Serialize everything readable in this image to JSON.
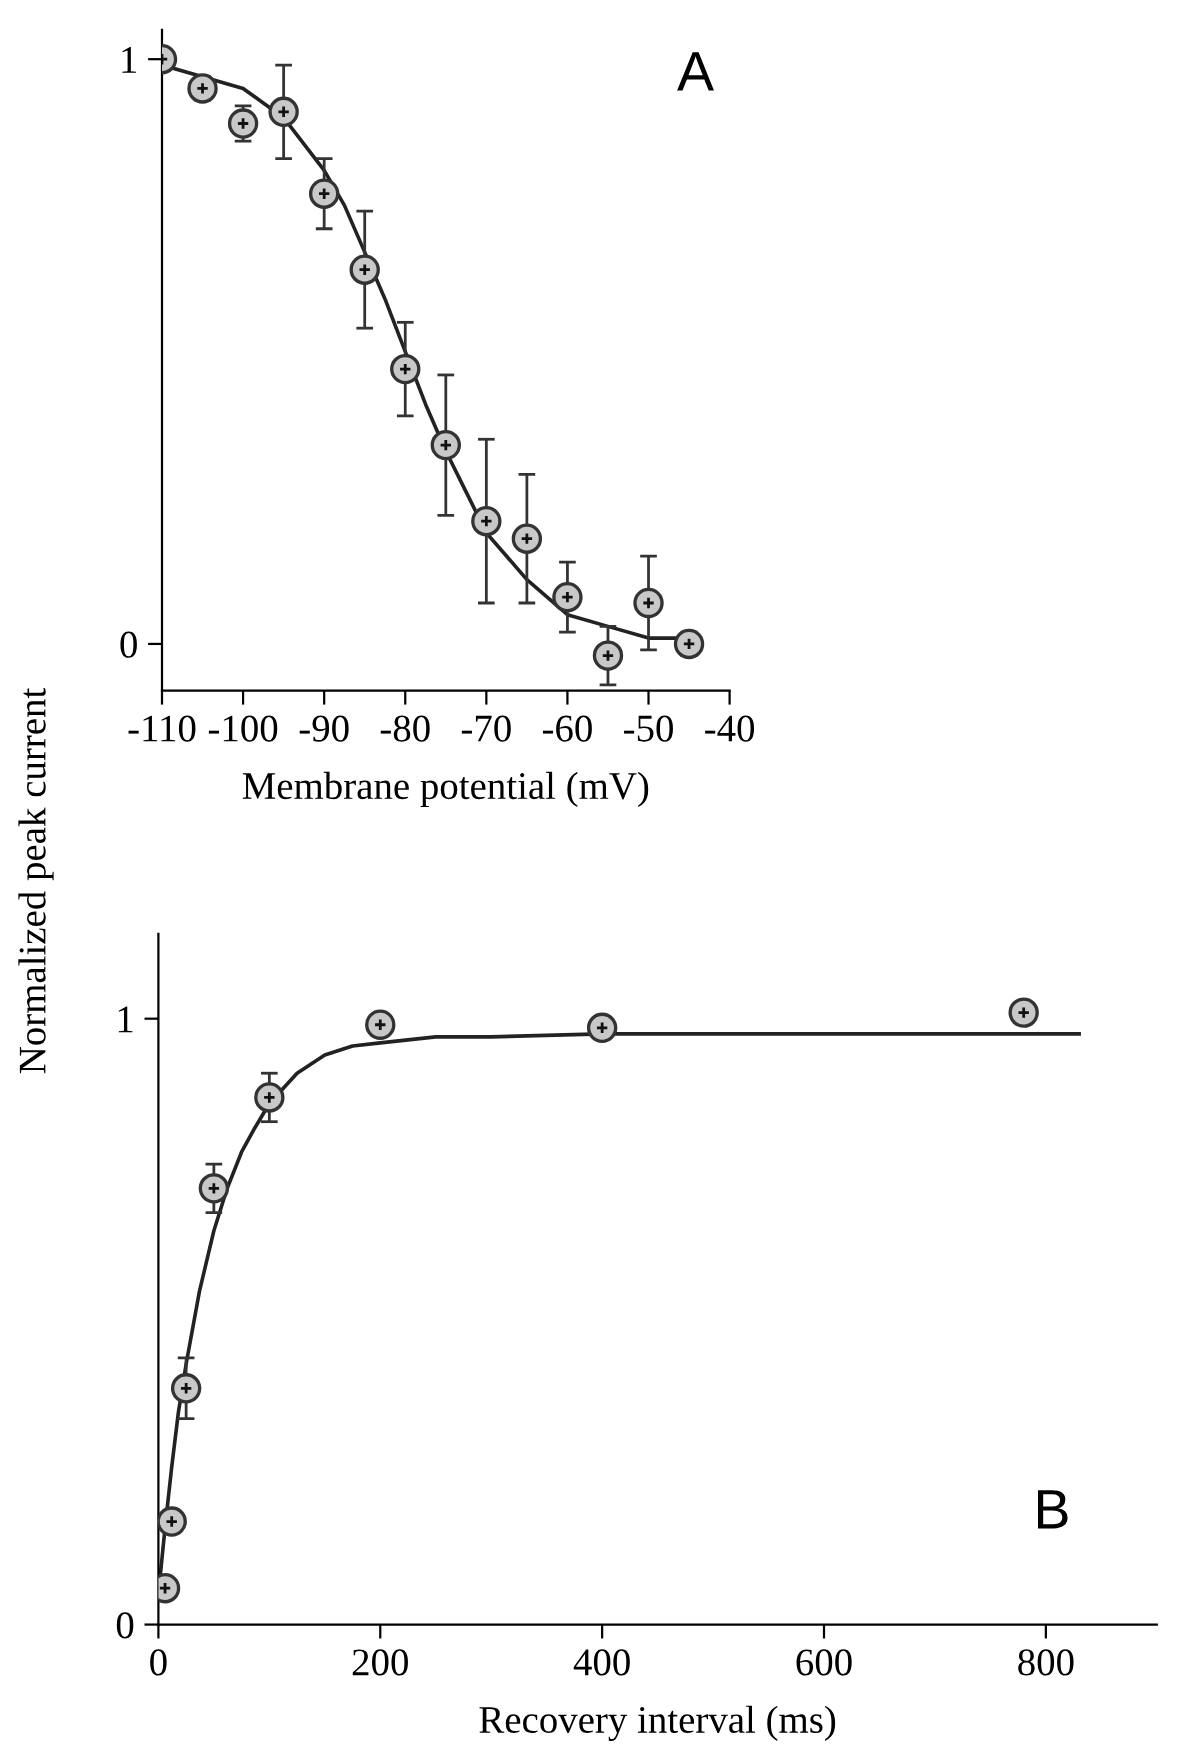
{
  "chart_data": [
    {
      "type": "scatter",
      "ylabel": "Normalized peak current",
      "xlabel": "Membrane potential (mV)",
      "annotations": [
        "A"
      ],
      "xlim": [
        -110,
        -40
      ],
      "ylim": [
        -0.08,
        1.05
      ],
      "xticks": [
        -110,
        -100,
        -90,
        -80,
        -70,
        -60,
        -50,
        -40
      ],
      "yticks": [
        0,
        1
      ],
      "grid": false,
      "legend": false,
      "marker": "circle",
      "series": [
        {
          "type": "line",
          "color": "#222222",
          "marker": "none",
          "line_style": "solid",
          "x": [
            -110,
            -105,
            -100,
            -95,
            -90,
            -87.5,
            -85,
            -82.5,
            -80,
            -77.5,
            -75,
            -72.5,
            -70,
            -65,
            -60,
            -55,
            -50,
            -45
          ],
          "values": [
            0.99,
            0.97,
            0.95,
            0.9,
            0.81,
            0.75,
            0.67,
            0.59,
            0.5,
            0.41,
            0.33,
            0.26,
            0.19,
            0.11,
            0.05,
            0.03,
            0.01,
            0.01
          ]
        },
        {
          "color": "#c8c8c8",
          "x": [
            -110,
            -105,
            -100,
            -95,
            -90,
            -85,
            -80,
            -75,
            -70,
            -65,
            -60,
            -55,
            -50,
            -45
          ],
          "values": [
            1.0,
            0.95,
            0.89,
            0.91,
            0.77,
            0.64,
            0.47,
            0.34,
            0.21,
            0.18,
            0.08,
            -0.02,
            0.07,
            0.0
          ],
          "errors": [
            null,
            0.02,
            0.03,
            0.08,
            0.06,
            0.1,
            0.08,
            0.12,
            0.14,
            0.11,
            0.06,
            0.05,
            0.08,
            0.02
          ]
        }
      ]
    },
    {
      "type": "scatter",
      "xlabel": "Recovery interval (ms)",
      "annotations": [
        "B"
      ],
      "xlim": [
        0,
        900
      ],
      "ylim": [
        0,
        1.14
      ],
      "xticks": [
        0,
        200,
        400,
        600,
        800
      ],
      "yticks": [
        0,
        1
      ],
      "grid": false,
      "legend": false,
      "marker": "circle",
      "series": [
        {
          "type": "line",
          "color": "#222222",
          "marker": "none",
          "line_style": "solid",
          "x": [
            0,
            6,
            12,
            18,
            25,
            37,
            50,
            62,
            75,
            87,
            100,
            125,
            150,
            175,
            200,
            250,
            300,
            400,
            830
          ],
          "values": [
            0.05,
            0.16,
            0.26,
            0.35,
            0.43,
            0.55,
            0.65,
            0.72,
            0.78,
            0.82,
            0.86,
            0.91,
            0.94,
            0.955,
            0.96,
            0.97,
            0.97,
            0.975,
            0.975
          ]
        },
        {
          "color": "#c8c8c8",
          "x": [
            6,
            12,
            25,
            50,
            100,
            200,
            400,
            780
          ],
          "values": [
            0.06,
            0.17,
            0.39,
            0.72,
            0.87,
            0.99,
            0.985,
            1.01
          ],
          "errors": [
            null,
            null,
            0.05,
            0.04,
            0.04,
            null,
            null,
            null
          ]
        }
      ]
    }
  ]
}
